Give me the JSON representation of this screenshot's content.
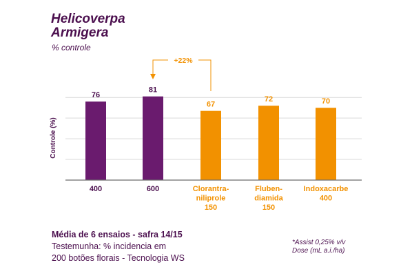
{
  "title_line1": "Helicoverpa",
  "title_line2": "Armigera",
  "subtitle": "% controle",
  "chart_data": {
    "type": "bar",
    "categories": [
      [
        "400"
      ],
      [
        "600"
      ],
      [
        "Clorantra-",
        "niliprole",
        "150"
      ],
      [
        "Fluben-",
        "diamida",
        "150"
      ],
      [
        "Indoxacarbe",
        "400"
      ]
    ],
    "values": [
      76,
      81,
      67,
      72,
      70
    ],
    "value_labels": [
      "76",
      "81",
      "67",
      "72",
      "70"
    ],
    "colors": [
      "#6a1b6e",
      "#6a1b6e",
      "#f29100",
      "#f29100",
      "#f29100"
    ],
    "label_colors": [
      "#4b0f4e",
      "#4b0f4e",
      "#f29100",
      "#f29100",
      "#f29100"
    ],
    "ylabel": "Controle (%)",
    "ylim": [
      0,
      100
    ],
    "grid": true,
    "annotation": {
      "text": "+22%",
      "from_category": 2,
      "to_category": 1,
      "color": "#f29100"
    }
  },
  "footer": {
    "line1": "Média de 6 ensaios - safra 14/15",
    "line2": "Testemunha: % incidencia em",
    "line3": "200 botões florais -  Tecnologia WS"
  },
  "note": {
    "line1": "*Assist 0,25% v/v",
    "line2": "Dose (mL a.i./ha)"
  }
}
